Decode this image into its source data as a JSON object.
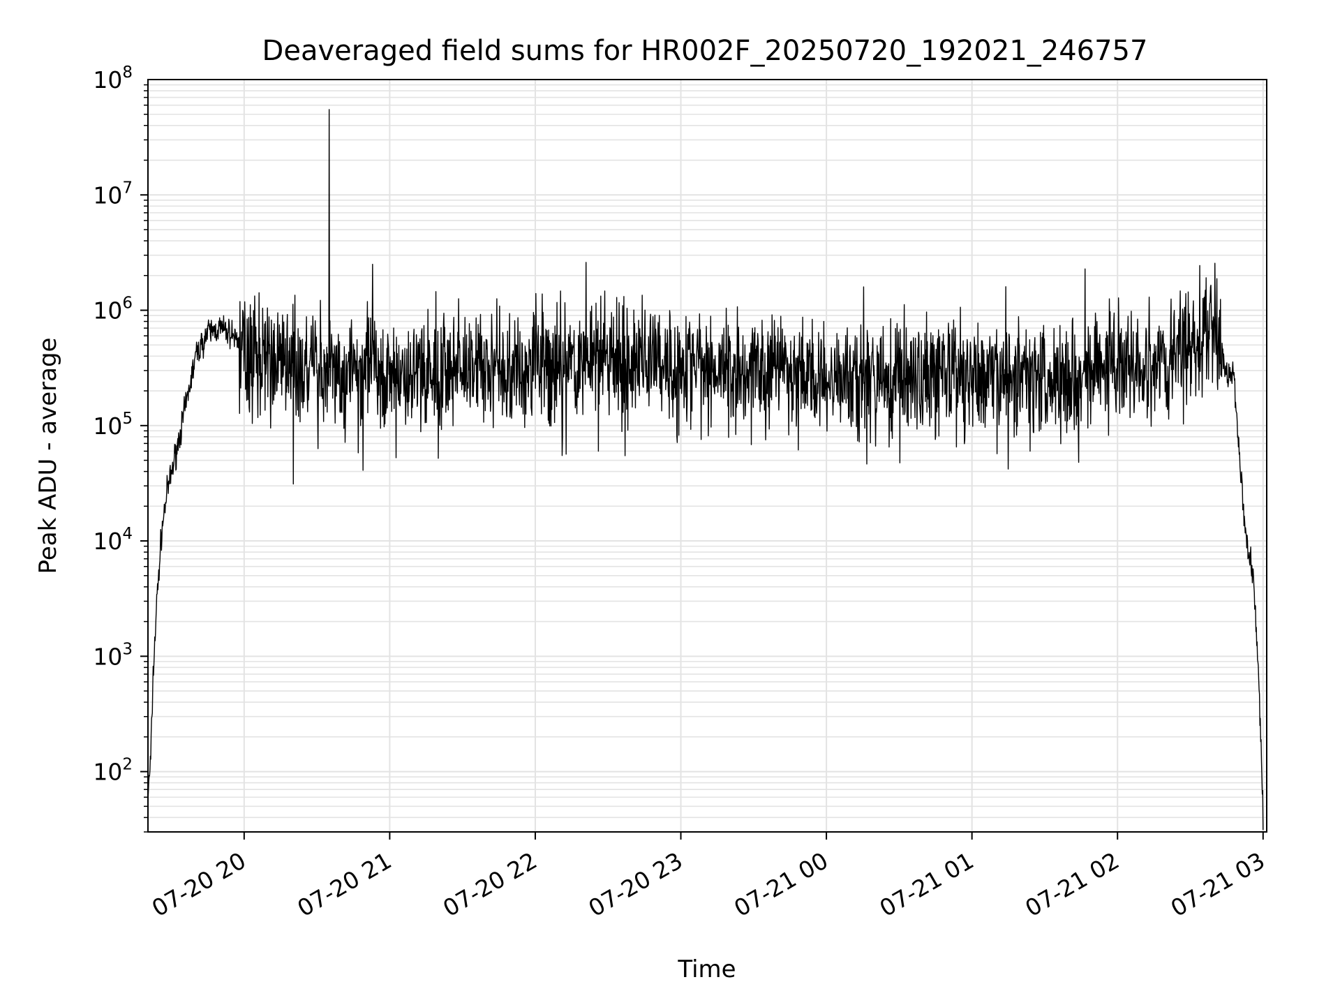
{
  "chart_data": {
    "type": "line",
    "title": "Deaveraged field sums for HR002F_20250720_192021_246757",
    "xlabel": "Time",
    "ylabel": "Peak ADU - average",
    "yscale": "log",
    "ylim": [
      30,
      100000000
    ],
    "xlim": [
      "2025-07-20 19:20:21",
      "2025-07-21 03:01:30"
    ],
    "grid": true,
    "line_color": "#000000",
    "grid_color": "#e3e3e3",
    "y_ticks": [
      {
        "base": "10",
        "exp": "2",
        "value": 100
      },
      {
        "base": "10",
        "exp": "3",
        "value": 1000
      },
      {
        "base": "10",
        "exp": "4",
        "value": 10000
      },
      {
        "base": "10",
        "exp": "5",
        "value": 100000
      },
      {
        "base": "10",
        "exp": "6",
        "value": 1000000
      },
      {
        "base": "10",
        "exp": "7",
        "value": 10000000
      },
      {
        "base": "10",
        "exp": "8",
        "value": 100000000
      }
    ],
    "x_ticks": [
      {
        "label": "07-20 20",
        "time": "2025-07-20 20:00"
      },
      {
        "label": "07-20 21",
        "time": "2025-07-20 21:00"
      },
      {
        "label": "07-20 22",
        "time": "2025-07-20 22:00"
      },
      {
        "label": "07-20 23",
        "time": "2025-07-20 23:00"
      },
      {
        "label": "07-21 00",
        "time": "2025-07-21 00:00"
      },
      {
        "label": "07-21 01",
        "time": "2025-07-21 01:00"
      },
      {
        "label": "07-21 02",
        "time": "2025-07-21 02:00"
      },
      {
        "label": "07-21 03",
        "time": "2025-07-21 03:00"
      }
    ],
    "envelope": [
      {
        "t": "2025-07-20 19:20:21",
        "y": 60
      },
      {
        "t": "2025-07-20 19:21:30",
        "y": 130
      },
      {
        "t": "2025-07-20 19:22:30",
        "y": 700
      },
      {
        "t": "2025-07-20 19:24:00",
        "y": 3000
      },
      {
        "t": "2025-07-20 19:26:00",
        "y": 12000
      },
      {
        "t": "2025-07-20 19:28:00",
        "y": 25000
      },
      {
        "t": "2025-07-20 19:32:00",
        "y": 60000
      },
      {
        "t": "2025-07-20 19:36:00",
        "y": 150000
      },
      {
        "t": "2025-07-20 19:40:00",
        "y": 400000
      },
      {
        "t": "2025-07-20 19:45:00",
        "y": 640000
      },
      {
        "t": "2025-07-20 19:50:00",
        "y": 700000
      },
      {
        "t": "2025-07-20 19:55:00",
        "y": 620000
      },
      {
        "t": "2025-07-20 20:00:00",
        "y": 480000
      },
      {
        "t": "2025-07-20 20:10:00",
        "y": 350000
      },
      {
        "t": "2025-07-20 20:30:00",
        "y": 300000
      },
      {
        "t": "2025-07-20 21:00:00",
        "y": 290000
      },
      {
        "t": "2025-07-20 21:30:00",
        "y": 310000
      },
      {
        "t": "2025-07-20 22:00:00",
        "y": 330000
      },
      {
        "t": "2025-07-20 22:30:00",
        "y": 380000
      },
      {
        "t": "2025-07-20 23:00:00",
        "y": 330000
      },
      {
        "t": "2025-07-20 23:30:00",
        "y": 280000
      },
      {
        "t": "2025-07-21 00:00:00",
        "y": 270000
      },
      {
        "t": "2025-07-21 00:30:00",
        "y": 260000
      },
      {
        "t": "2025-07-21 01:00:00",
        "y": 280000
      },
      {
        "t": "2025-07-21 01:30:00",
        "y": 280000
      },
      {
        "t": "2025-07-21 02:00:00",
        "y": 300000
      },
      {
        "t": "2025-07-21 02:20:00",
        "y": 380000
      },
      {
        "t": "2025-07-21 02:35:00",
        "y": 600000
      },
      {
        "t": "2025-07-21 02:39:00",
        "y": 850000
      },
      {
        "t": "2025-07-21 02:42:00",
        "y": 600000
      },
      {
        "t": "2025-07-21 02:45:00",
        "y": 260000
      },
      {
        "t": "2025-07-21 02:48:00",
        "y": 280000
      },
      {
        "t": "2025-07-21 02:50:00",
        "y": 60000
      },
      {
        "t": "2025-07-21 02:53:00",
        "y": 11000
      },
      {
        "t": "2025-07-21 02:56:00",
        "y": 5000
      },
      {
        "t": "2025-07-21 02:58:00",
        "y": 800
      },
      {
        "t": "2025-07-21 02:59:00",
        "y": 200
      },
      {
        "t": "2025-07-21 03:00:00",
        "y": 40
      }
    ],
    "spikes": [
      {
        "t": "2025-07-20 20:35:00",
        "y": 55000000
      },
      {
        "t": "2025-07-20 22:21:00",
        "y": 2600000
      },
      {
        "t": "2025-07-20 20:53:00",
        "y": 2500000
      },
      {
        "t": "2025-07-21 01:14:00",
        "y": 1600000
      },
      {
        "t": "2025-07-20 21:19:00",
        "y": 1450000
      },
      {
        "t": "2025-07-20 20:21:00",
        "y": 1350000
      },
      {
        "t": "2025-07-20 22:44:00",
        "y": 1350000
      },
      {
        "t": "2025-07-21 02:13:00",
        "y": 1300000
      },
      {
        "t": "2025-07-21 02:22:00",
        "y": 1250000
      },
      {
        "t": "2025-07-21 02:38:00",
        "y": 1150000
      },
      {
        "t": "2025-07-21 01:24:00",
        "y": 60000
      },
      {
        "t": "2025-07-20 22:11:00",
        "y": 55000
      },
      {
        "t": "2025-07-20 21:20:00",
        "y": 52000
      },
      {
        "t": "2025-07-21 01:44:00",
        "y": 48000
      },
      {
        "t": "2025-07-21 01:15:00",
        "y": 42000
      },
      {
        "t": "2025-07-20 20:47:00",
        "y": 58000
      },
      {
        "t": "2025-07-20 22:26:00",
        "y": 60000
      }
    ]
  }
}
